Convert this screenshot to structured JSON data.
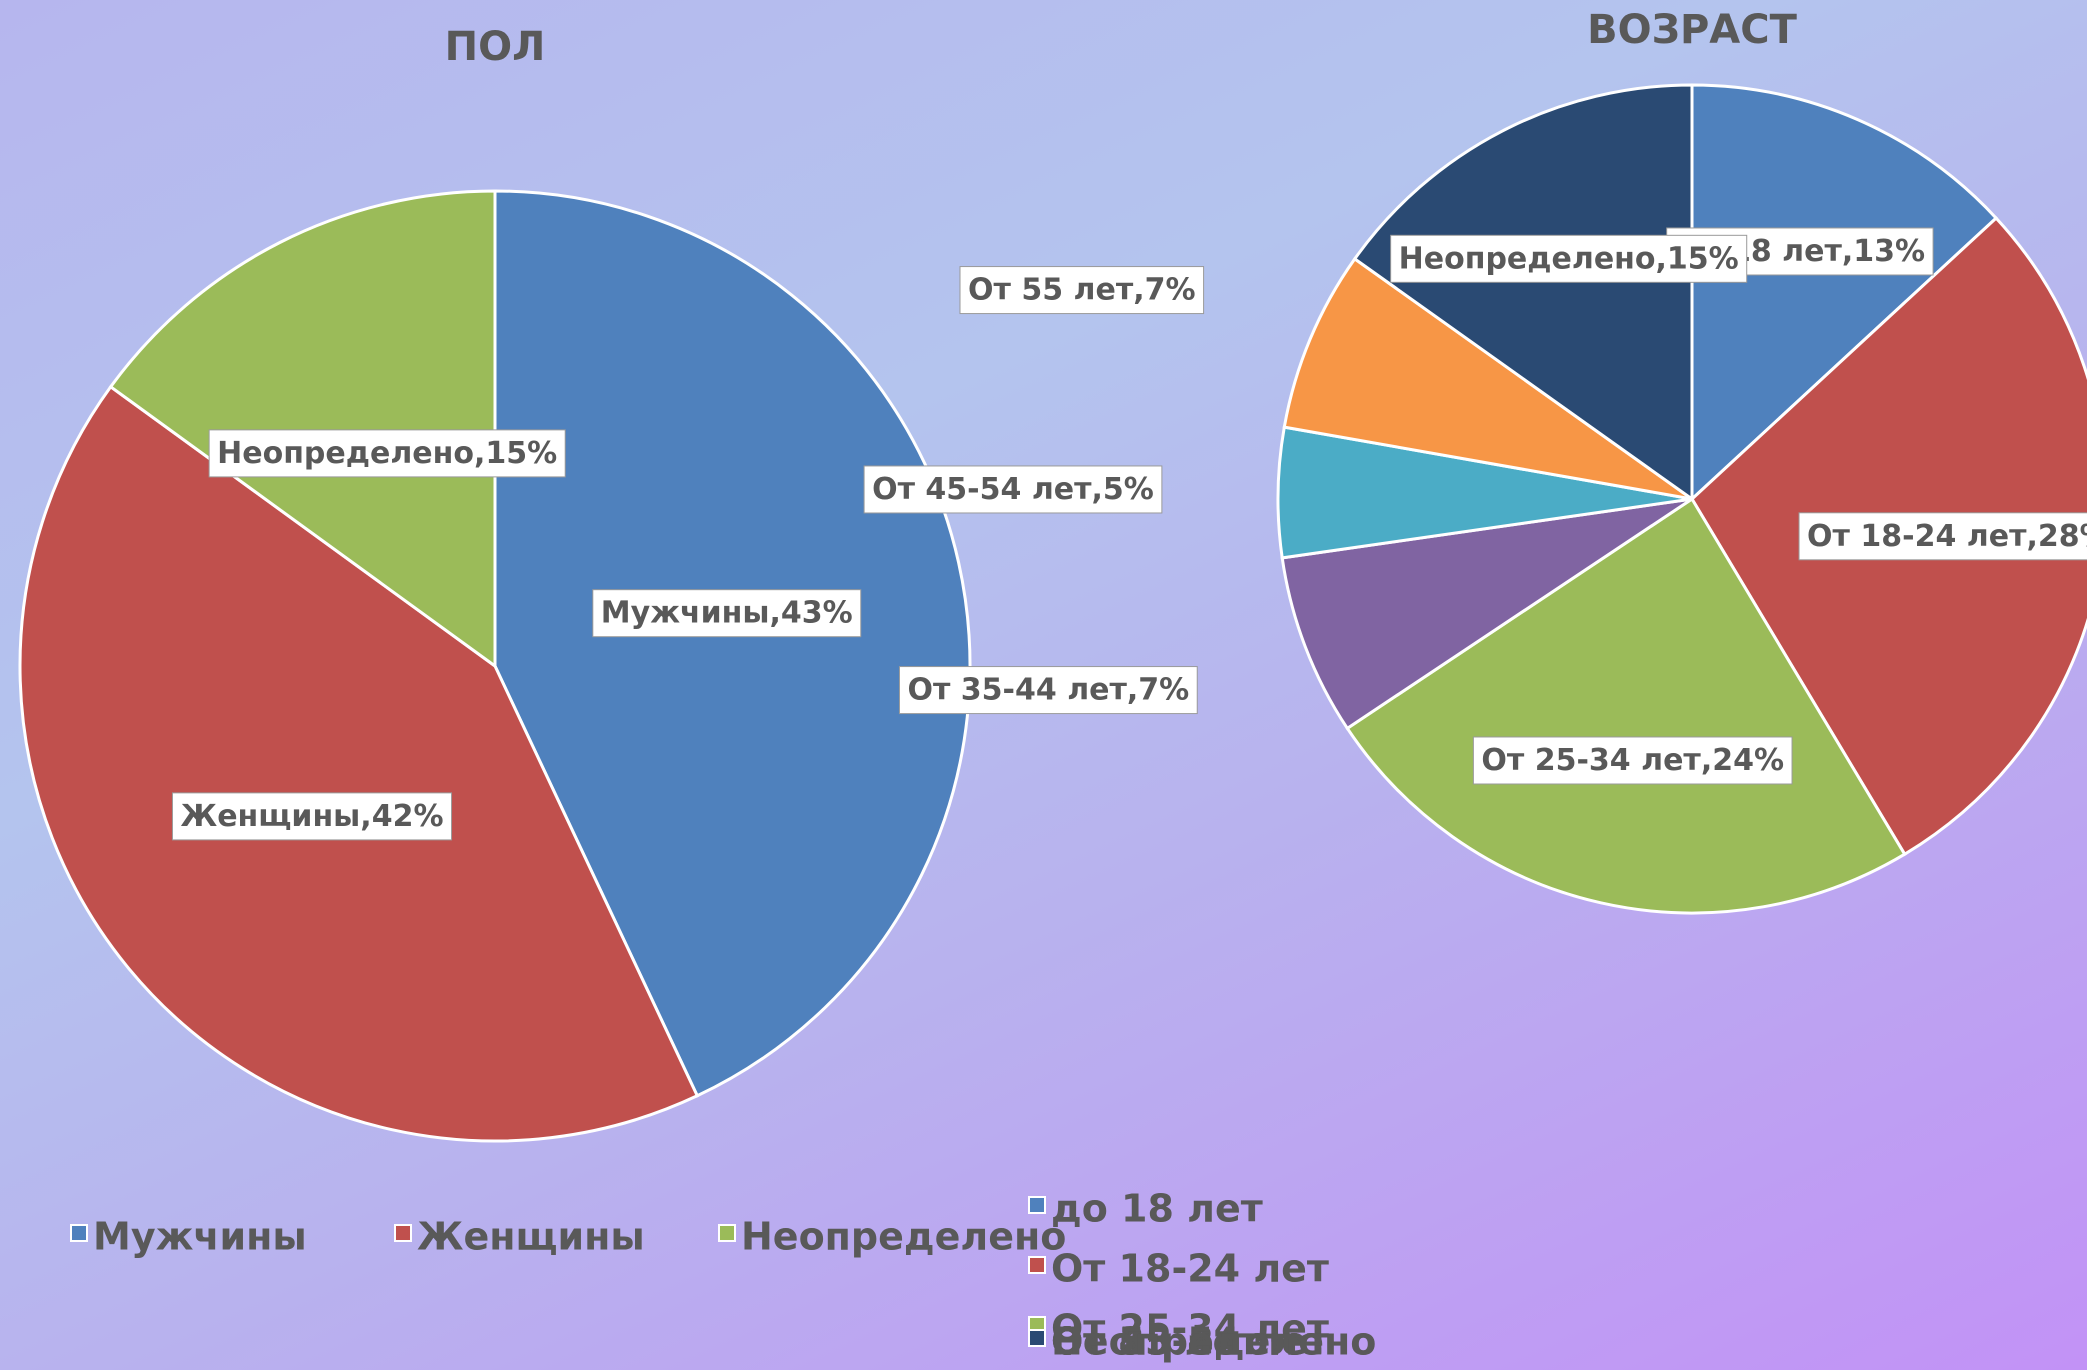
{
  "chart_data": [
    {
      "type": "pie",
      "title": "ПОЛ",
      "categories": [
        "Мужчины",
        "Женщины",
        "Неопределено"
      ],
      "values": [
        43,
        42,
        15
      ],
      "value_labels": [
        "Мужчины,43%",
        "Женщины,42%",
        "Неопределено,15%"
      ],
      "colors": [
        "#4f81bd",
        "#c0504d",
        "#9bbb59"
      ],
      "legend": "bottom"
    },
    {
      "type": "pie",
      "title": "ВОЗРАСТ",
      "categories": [
        "до 18 лет",
        "От 18-24 лет",
        "От 25-34 лет",
        "От 35-44 лет",
        "От 45-54 лет",
        "От 55 лет",
        "Неопределено"
      ],
      "values": [
        13,
        28,
        24,
        7,
        5,
        7,
        15
      ],
      "value_labels": [
        "до 18 лет,13%",
        "От 18-24 лет,28%",
        "От 25-34 лет,24%",
        "От 35-44 лет,7%",
        "От 45-54 лет,5%",
        "От 55 лет,7%",
        "Неопределено,15%"
      ],
      "colors": [
        "#4f81bd",
        "#c0504d",
        "#9bbb59",
        "#8064a2",
        "#4bacc6",
        "#f79646",
        "#2a4a73"
      ],
      "legend": "bottom"
    }
  ]
}
